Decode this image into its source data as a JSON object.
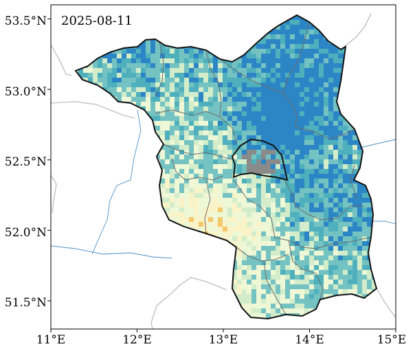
{
  "map": {
    "date_label": "2025-08-11",
    "lon_range": [
      11.0,
      15.0
    ],
    "lat_range": [
      51.3,
      53.6
    ],
    "x_ticks": [
      "11°E",
      "12°E",
      "13°E",
      "14°E",
      "15°E"
    ],
    "y_ticks": [
      "51.5°N",
      "52.0°N",
      "52.5°N",
      "53.0°N",
      "53.5°N"
    ],
    "colors": {
      "very_dry": "#f3c86a",
      "dry": "#fbf3c8",
      "light": "#eef7d6",
      "light_green": "#d3edcb",
      "medium_teal": "#74c3c2",
      "teal": "#4eb0bd",
      "blue": "#2c86c6",
      "urban_gray": "#8a8a8a",
      "border": "#111111",
      "district_border": "#6b6b6b",
      "country_border": "#c8c8c8",
      "river": "#4a8fc4"
    }
  }
}
